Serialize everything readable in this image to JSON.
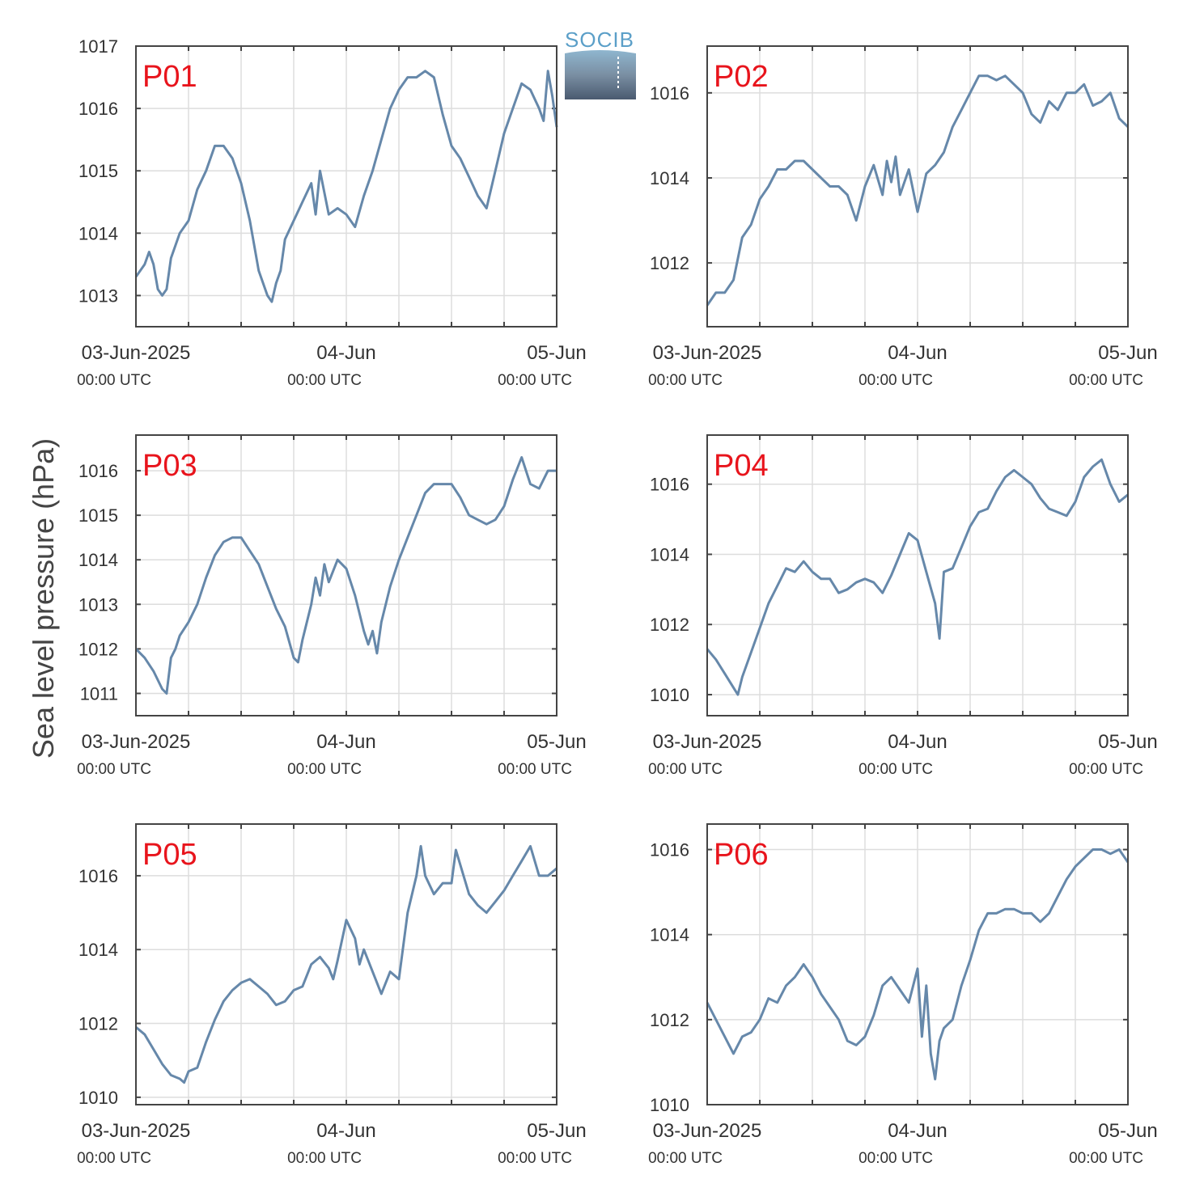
{
  "figure": {
    "ylabel": "Sea level pressure (hPa)",
    "logo_text": "SOCIB",
    "x_ticks": [
      {
        "label": "03-Jun-2025",
        "sub": "00:00 UTC"
      },
      {
        "label": "04-Jun",
        "sub": "00:00 UTC"
      },
      {
        "label": "05-Jun",
        "sub": "00:00 UTC"
      }
    ],
    "colors": {
      "line": "#6688aa",
      "panel_label": "#e8141c",
      "frame": "#444444",
      "grid": "#dddddd"
    }
  },
  "chart_data": [
    {
      "type": "line",
      "title": "P01",
      "xlim": [
        0,
        48
      ],
      "ylim": [
        1012.5,
        1017
      ],
      "yticks": [
        1013,
        1014,
        1015,
        1016,
        1017
      ],
      "x": [
        0,
        1,
        1.5,
        2,
        2.5,
        3,
        3.5,
        4,
        5,
        6,
        7,
        8,
        9,
        10,
        11,
        12,
        13,
        14,
        15,
        15.5,
        16,
        16.5,
        17,
        18,
        19,
        20,
        20.5,
        21,
        22,
        23,
        24,
        25,
        26,
        27,
        28,
        29,
        30,
        31,
        32,
        33,
        34,
        35,
        36,
        37,
        38,
        39,
        40,
        41,
        42,
        43,
        44,
        45,
        46,
        46.5,
        47,
        47.5,
        48
      ],
      "y": [
        1013.3,
        1013.5,
        1013.7,
        1013.5,
        1013.1,
        1013.0,
        1013.1,
        1013.6,
        1014.0,
        1014.2,
        1014.7,
        1015.0,
        1015.4,
        1015.4,
        1015.2,
        1014.8,
        1014.2,
        1013.4,
        1013.0,
        1012.9,
        1013.2,
        1013.4,
        1013.9,
        1014.2,
        1014.5,
        1014.8,
        1014.3,
        1015.0,
        1014.3,
        1014.4,
        1014.3,
        1014.1,
        1014.6,
        1015.0,
        1015.5,
        1016.0,
        1016.3,
        1016.5,
        1016.5,
        1016.6,
        1016.5,
        1015.9,
        1015.4,
        1015.2,
        1014.9,
        1014.6,
        1014.4,
        1015.0,
        1015.6,
        1016.0,
        1016.4,
        1016.3,
        1016.0,
        1015.8,
        1016.6,
        1016.2,
        1015.7
      ]
    },
    {
      "type": "line",
      "title": "P02",
      "xlim": [
        0,
        48
      ],
      "ylim": [
        1010.5,
        1017.1
      ],
      "yticks": [
        1012,
        1014,
        1016
      ],
      "x": [
        0,
        1,
        2,
        3,
        4,
        5,
        6,
        7,
        8,
        9,
        10,
        11,
        12,
        13,
        14,
        15,
        16,
        17,
        18,
        19,
        20,
        20.5,
        21,
        21.5,
        22,
        23,
        24,
        25,
        26,
        27,
        28,
        29,
        30,
        31,
        32,
        33,
        34,
        35,
        36,
        37,
        38,
        39,
        40,
        41,
        42,
        43,
        44,
        45,
        46,
        47,
        48
      ],
      "y": [
        1011.0,
        1011.3,
        1011.3,
        1011.6,
        1012.6,
        1012.9,
        1013.5,
        1013.8,
        1014.2,
        1014.2,
        1014.4,
        1014.4,
        1014.2,
        1014.0,
        1013.8,
        1013.8,
        1013.6,
        1013.0,
        1013.8,
        1014.3,
        1013.6,
        1014.4,
        1013.9,
        1014.5,
        1013.6,
        1014.2,
        1013.2,
        1014.1,
        1014.3,
        1014.6,
        1015.2,
        1015.6,
        1016.0,
        1016.4,
        1016.4,
        1016.3,
        1016.4,
        1016.2,
        1016.0,
        1015.5,
        1015.3,
        1015.8,
        1015.6,
        1016.0,
        1016.0,
        1016.2,
        1015.7,
        1015.8,
        1016.0,
        1015.4,
        1015.2
      ]
    },
    {
      "type": "line",
      "title": "P03",
      "xlim": [
        0,
        48
      ],
      "ylim": [
        1010.5,
        1016.8
      ],
      "yticks": [
        1011,
        1012,
        1013,
        1014,
        1015,
        1016
      ],
      "x": [
        0,
        1,
        2,
        3,
        3.5,
        4,
        4.5,
        5,
        6,
        7,
        8,
        9,
        10,
        11,
        12,
        13,
        14,
        15,
        16,
        17,
        18,
        18.5,
        19,
        20,
        20.5,
        21,
        21.5,
        22,
        23,
        24,
        25,
        26,
        26.5,
        27,
        27.5,
        28,
        29,
        30,
        31,
        32,
        33,
        34,
        35,
        36,
        37,
        38,
        39,
        40,
        41,
        42,
        43,
        44,
        45,
        46,
        47,
        48
      ],
      "y": [
        1012.0,
        1011.8,
        1011.5,
        1011.1,
        1011.0,
        1011.8,
        1012.0,
        1012.3,
        1012.6,
        1013.0,
        1013.6,
        1014.1,
        1014.4,
        1014.5,
        1014.5,
        1014.2,
        1013.9,
        1013.4,
        1012.9,
        1012.5,
        1011.8,
        1011.7,
        1012.2,
        1013.0,
        1013.6,
        1013.2,
        1013.9,
        1013.5,
        1014.0,
        1013.8,
        1013.2,
        1012.4,
        1012.1,
        1012.4,
        1011.9,
        1012.6,
        1013.4,
        1014.0,
        1014.5,
        1015.0,
        1015.5,
        1015.7,
        1015.7,
        1015.7,
        1015.4,
        1015.0,
        1014.9,
        1014.8,
        1014.9,
        1015.2,
        1015.8,
        1016.3,
        1015.7,
        1015.6,
        1016.0,
        1016.0
      ]
    },
    {
      "type": "line",
      "title": "P04",
      "xlim": [
        0,
        48
      ],
      "ylim": [
        1009.4,
        1017.4
      ],
      "yticks": [
        1010,
        1012,
        1014,
        1016
      ],
      "x": [
        0,
        1,
        2,
        3,
        3.5,
        4,
        5,
        6,
        7,
        8,
        9,
        10,
        11,
        12,
        13,
        14,
        15,
        16,
        17,
        18,
        19,
        20,
        21,
        22,
        23,
        24,
        25,
        26,
        26.5,
        27,
        28,
        29,
        30,
        31,
        32,
        33,
        34,
        35,
        36,
        37,
        38,
        39,
        40,
        41,
        42,
        43,
        44,
        45,
        46,
        47,
        48
      ],
      "y": [
        1011.3,
        1011.0,
        1010.6,
        1010.2,
        1010.0,
        1010.5,
        1011.2,
        1011.9,
        1012.6,
        1013.1,
        1013.6,
        1013.5,
        1013.8,
        1013.5,
        1013.3,
        1013.3,
        1012.9,
        1013.0,
        1013.2,
        1013.3,
        1013.2,
        1012.9,
        1013.4,
        1014.0,
        1014.6,
        1014.4,
        1013.5,
        1012.6,
        1011.6,
        1013.5,
        1013.6,
        1014.2,
        1014.8,
        1015.2,
        1015.3,
        1015.8,
        1016.2,
        1016.4,
        1016.2,
        1016.0,
        1015.6,
        1015.3,
        1015.2,
        1015.1,
        1015.5,
        1016.2,
        1016.5,
        1016.7,
        1016.0,
        1015.5,
        1015.7
      ]
    },
    {
      "type": "line",
      "title": "P05",
      "xlim": [
        0,
        48
      ],
      "ylim": [
        1009.8,
        1017.4
      ],
      "yticks": [
        1010,
        1012,
        1014,
        1016
      ],
      "x": [
        0,
        1,
        2,
        3,
        4,
        5,
        5.5,
        6,
        7,
        8,
        9,
        10,
        11,
        12,
        13,
        14,
        15,
        16,
        17,
        18,
        19,
        20,
        21,
        22,
        22.5,
        23,
        24,
        25,
        25.5,
        26,
        27,
        28,
        29,
        30,
        31,
        32,
        32.5,
        33,
        34,
        35,
        36,
        36.5,
        37,
        38,
        39,
        40,
        41,
        42,
        43,
        44,
        45,
        46,
        47,
        48
      ],
      "y": [
        1011.9,
        1011.7,
        1011.3,
        1010.9,
        1010.6,
        1010.5,
        1010.4,
        1010.7,
        1010.8,
        1011.5,
        1012.1,
        1012.6,
        1012.9,
        1013.1,
        1013.2,
        1013.0,
        1012.8,
        1012.5,
        1012.6,
        1012.9,
        1013.0,
        1013.6,
        1013.8,
        1013.5,
        1013.2,
        1013.7,
        1014.8,
        1014.3,
        1013.6,
        1014.0,
        1013.4,
        1012.8,
        1013.4,
        1013.2,
        1015.0,
        1016.0,
        1016.8,
        1016.0,
        1015.5,
        1015.8,
        1015.8,
        1016.7,
        1016.3,
        1015.5,
        1015.2,
        1015.0,
        1015.3,
        1015.6,
        1016.0,
        1016.4,
        1016.8,
        1016.0,
        1016.0,
        1016.2
      ]
    },
    {
      "type": "line",
      "title": "P06",
      "xlim": [
        0,
        48
      ],
      "ylim": [
        1010,
        1016.6
      ],
      "yticks": [
        1010,
        1012,
        1014,
        1016
      ],
      "x": [
        0,
        1,
        2,
        3,
        4,
        5,
        6,
        7,
        8,
        9,
        10,
        11,
        12,
        13,
        14,
        15,
        16,
        17,
        18,
        19,
        20,
        21,
        22,
        23,
        24,
        24.5,
        25,
        25.5,
        26,
        26.5,
        27,
        28,
        29,
        30,
        31,
        32,
        33,
        34,
        35,
        36,
        37,
        38,
        39,
        40,
        41,
        42,
        43,
        44,
        45,
        46,
        47,
        48
      ],
      "y": [
        1012.4,
        1012.0,
        1011.6,
        1011.2,
        1011.6,
        1011.7,
        1012.0,
        1012.5,
        1012.4,
        1012.8,
        1013.0,
        1013.3,
        1013.0,
        1012.6,
        1012.3,
        1012.0,
        1011.5,
        1011.4,
        1011.6,
        1012.1,
        1012.8,
        1013.0,
        1012.7,
        1012.4,
        1013.2,
        1011.6,
        1012.8,
        1011.2,
        1010.6,
        1011.5,
        1011.8,
        1012.0,
        1012.8,
        1013.4,
        1014.1,
        1014.5,
        1014.5,
        1014.6,
        1014.6,
        1014.5,
        1014.5,
        1014.3,
        1014.5,
        1014.9,
        1015.3,
        1015.6,
        1015.8,
        1016.0,
        1016.0,
        1015.9,
        1016.0,
        1015.7
      ]
    }
  ]
}
